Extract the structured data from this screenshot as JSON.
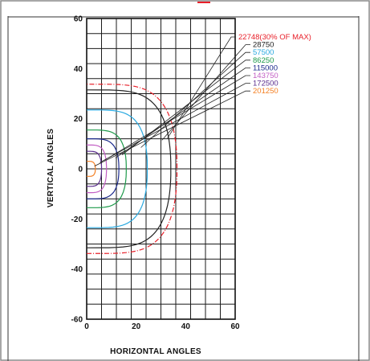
{
  "chart_data": {
    "type": "line",
    "title": "",
    "xlabel": "HORIZONTAL ANGLES",
    "ylabel": "VERTICAL ANGLES",
    "xlim": [
      0,
      60
    ],
    "ylim": [
      -60,
      60
    ],
    "x_ticks": [
      "0",
      "20",
      "40",
      "60"
    ],
    "y_ticks": [
      "60",
      "40",
      "20",
      "0",
      "-20",
      "-40",
      "-60"
    ],
    "grid": true,
    "grid_step": 6,
    "legend_placement": "right",
    "series": [
      {
        "name": "22748(30% OF MAX)",
        "color": "#e8202a",
        "dash": true,
        "h_extent": 36.5,
        "v_extent": 33.8
      },
      {
        "name": "28750",
        "color": "#222222",
        "dash": false,
        "h_extent": 34,
        "v_extent": 31.5
      },
      {
        "name": "57500",
        "color": "#29a9e0",
        "dash": false,
        "h_extent": 24.5,
        "v_extent": 23.5
      },
      {
        "name": "86250",
        "color": "#1d9a4a",
        "dash": false,
        "h_extent": 16,
        "v_extent": 15.5
      },
      {
        "name": "115000",
        "color": "#1b2a8c",
        "dash": false,
        "h_extent": 13,
        "v_extent": 12
      },
      {
        "name": "143750",
        "color": "#c25ec4",
        "dash": false,
        "h_extent": 8,
        "v_extent": 9.5
      },
      {
        "name": "172500",
        "color": "#5b2d8e",
        "dash": false,
        "h_extent": 6,
        "v_extent": 7
      },
      {
        "name": "201250",
        "color": "#f48024",
        "dash": false,
        "h_extent": 3.5,
        "v_extent": 3
      }
    ]
  }
}
